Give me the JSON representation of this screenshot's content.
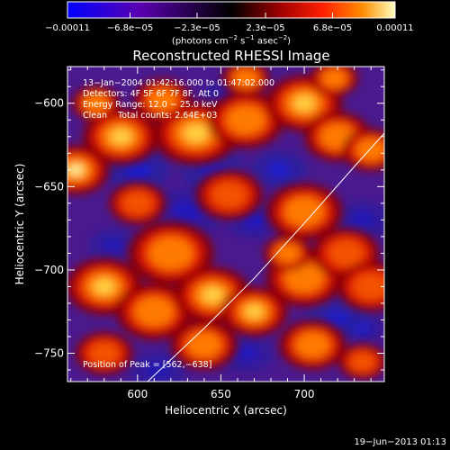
{
  "colorbar": {
    "tick_labels": [
      "−0.00011",
      "−6.8e−05",
      "−2.3e−05",
      "2.3e−05",
      "6.8e−05",
      "0.00011"
    ],
    "tick_values": [
      -0.00011,
      -6.8e-05,
      -2.3e-05,
      2.3e-05,
      6.8e-05,
      0.00011
    ],
    "units_prefix": "(photons cm",
    "units_exp1": "−2",
    "units_mid": " s",
    "units_exp2": "−1",
    "units_mid2": " asec",
    "units_exp3": "−2",
    "units_suffix": ")",
    "colors": [
      "#0000ff",
      "#5a00b0",
      "#000000",
      "#a00000",
      "#ff2000",
      "#ff8c00",
      "#ffffc0"
    ]
  },
  "footer_text": "19−Jun−2013 01:13",
  "chart_data": {
    "type": "heatmap",
    "title": "Reconstructed RHESSI Image",
    "xlabel": "Heliocentric X (arcsec)",
    "ylabel": "Heliocentric Y (arcsec)",
    "xlim": [
      558,
      748
    ],
    "ylim": [
      -767,
      -578
    ],
    "xticks": [
      600,
      650,
      700
    ],
    "yticks": [
      -600,
      -650,
      -700,
      -750
    ],
    "xtick_labels": [
      "600",
      "650",
      "700"
    ],
    "ytick_labels": [
      "−600",
      "−650",
      "−700",
      "−750"
    ],
    "annotations": [
      "13−Jan−2004 01:42:16.000 to 01:47:02.000",
      "Detectors: 4F 5F 6F 7F 8F, Att 0",
      "Energy Range: 12.0 − 25.0 keV",
      "Clean    Total counts: 2.64E+03",
      "Position of Peak = [562,−638]"
    ],
    "peak": [
      562,
      -638
    ],
    "limb_curve": [
      [
        606,
        -767
      ],
      [
        640,
        -735
      ],
      [
        670,
        -705
      ],
      [
        700,
        -672
      ],
      [
        730,
        -638
      ],
      [
        748,
        -618
      ]
    ],
    "bright_blobs": [
      [
        563,
        -640,
        14,
        1.0
      ],
      [
        590,
        -620,
        16,
        0.85
      ],
      [
        635,
        -618,
        18,
        0.8
      ],
      [
        665,
        -610,
        16,
        0.6
      ],
      [
        700,
        -600,
        16,
        0.75
      ],
      [
        720,
        -620,
        14,
        0.6
      ],
      [
        740,
        -628,
        12,
        0.65
      ],
      [
        615,
        -598,
        12,
        0.55
      ],
      [
        665,
        -585,
        10,
        0.6
      ],
      [
        718,
        -585,
        10,
        0.55
      ],
      [
        575,
        -600,
        10,
        0.55
      ],
      [
        600,
        -660,
        12,
        0.45
      ],
      [
        655,
        -655,
        14,
        0.5
      ],
      [
        700,
        -665,
        16,
        0.55
      ],
      [
        620,
        -690,
        18,
        0.65
      ],
      [
        580,
        -710,
        16,
        0.7
      ],
      [
        610,
        -725,
        16,
        0.6
      ],
      [
        645,
        -715,
        16,
        0.7
      ],
      [
        670,
        -725,
        14,
        0.8
      ],
      [
        700,
        -705,
        16,
        0.55
      ],
      [
        725,
        -690,
        14,
        0.45
      ],
      [
        740,
        -710,
        14,
        0.5
      ],
      [
        580,
        -750,
        12,
        0.5
      ],
      [
        640,
        -745,
        14,
        0.55
      ],
      [
        705,
        -745,
        14,
        0.6
      ],
      [
        735,
        -755,
        10,
        0.45
      ],
      [
        690,
        -690,
        10,
        0.6
      ]
    ],
    "dark_blobs": [
      [
        600,
        -640,
        16,
        0.8
      ],
      [
        645,
        -640,
        16,
        0.7
      ],
      [
        685,
        -640,
        14,
        0.75
      ],
      [
        630,
        -665,
        18,
        0.55
      ],
      [
        670,
        -670,
        14,
        0.6
      ],
      [
        735,
        -670,
        14,
        0.5
      ],
      [
        585,
        -685,
        12,
        0.45
      ],
      [
        720,
        -730,
        16,
        0.7
      ],
      [
        665,
        -750,
        14,
        0.55
      ],
      [
        612,
        -760,
        14,
        0.45
      ],
      [
        735,
        -735,
        10,
        0.65
      ],
      [
        655,
        -595,
        12,
        0.45
      ]
    ]
  }
}
